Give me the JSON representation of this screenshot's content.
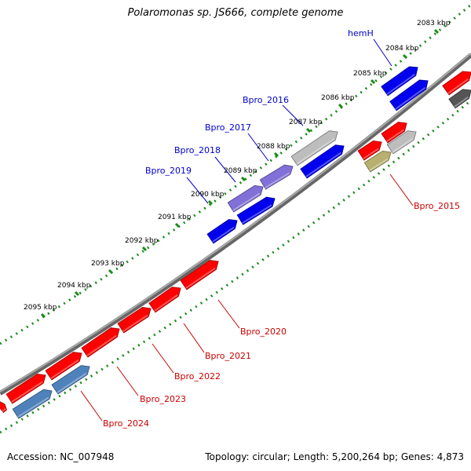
{
  "title": "Polaromonas sp. JS666, complete genome",
  "footer": {
    "accession": "Accession: NC_007948",
    "topology": "Topology: circular; Length: 5,200,264 bp; Genes: 4,873"
  },
  "colors": {
    "blue": "#0000ee",
    "red": "#ff0000",
    "purple": "#8070d8",
    "gray": "#bdbdbd",
    "olive": "#b8b070",
    "steel": "#4f82bb",
    "dark": "#555555",
    "backbone": "#777777",
    "ticks": "#1a8a1a",
    "label_blue": "#0000cc",
    "label_red": "#cc0000"
  },
  "kbp_labels": [
    "2083 kbp",
    "2084 kbp",
    "2085 kbp",
    "2086 kbp",
    "2087 kbp",
    "2088 kbp",
    "2089 kbp",
    "2090 kbp",
    "2091 kbp",
    "2092 kbp",
    "2093 kbp",
    "2094 kbp",
    "2095 kbp"
  ],
  "gene_labels": [
    {
      "text": "hemH",
      "strand": "plus"
    },
    {
      "text": "Bpro_2016",
      "strand": "plus"
    },
    {
      "text": "Bpro_2017",
      "strand": "plus"
    },
    {
      "text": "Bpro_2018",
      "strand": "plus"
    },
    {
      "text": "Bpro_2019",
      "strand": "plus"
    },
    {
      "text": "Bpro_2015",
      "strand": "minus"
    },
    {
      "text": "Bpro_2020",
      "strand": "minus"
    },
    {
      "text": "Bpro_2021",
      "strand": "minus"
    },
    {
      "text": "Bpro_2022",
      "strand": "minus"
    },
    {
      "text": "Bpro_2023",
      "strand": "minus"
    },
    {
      "text": "Bpro_2024",
      "strand": "minus"
    }
  ]
}
